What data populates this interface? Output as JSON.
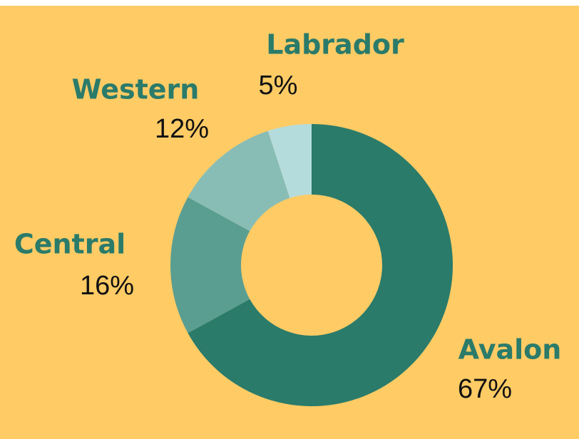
{
  "chart_data": {
    "type": "donut",
    "categories": [
      "Avalon",
      "Central",
      "Western",
      "Labrador"
    ],
    "values": [
      67,
      16,
      12,
      5
    ],
    "value_labels": [
      "67%",
      "16%",
      "12%",
      "5%"
    ],
    "colors": [
      "#2a7b6a",
      "#5a9e92",
      "#88bdb6",
      "#b5dcdc"
    ]
  }
}
